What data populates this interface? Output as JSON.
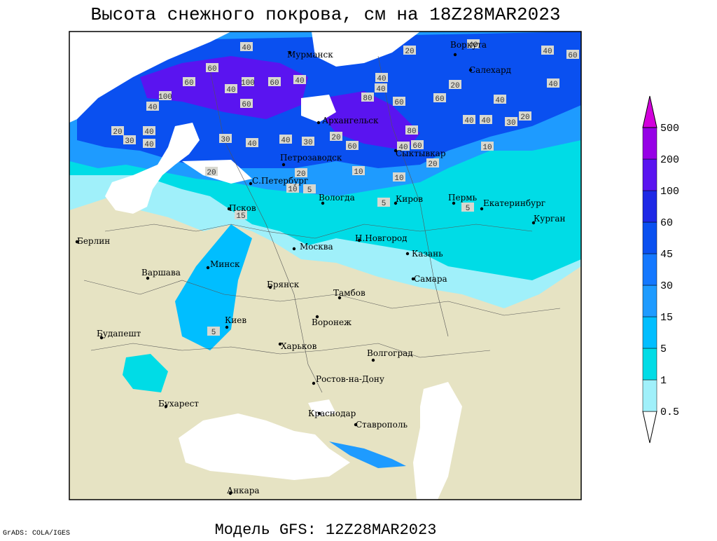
{
  "title": "Высота снежного покрова, см на 18Z28MAR2023",
  "footer": "Модель GFS: 12Z28MAR2023",
  "credit": "GrADS: COLA/IGES",
  "cities": [
    "Мурманск",
    "Воркута",
    "Салехард",
    "Архангельск",
    "Сыктывкар",
    "Петрозаводск",
    "С.Петербург",
    "Вологда",
    "Киров",
    "Пермь",
    "Екатеринбург",
    "Курган",
    "Псков",
    "Берлин",
    "Москва",
    "Н.Новгород",
    "Казань",
    "Минск",
    "Варшава",
    "Самара",
    "Брянск",
    "Тамбов",
    "Воронеж",
    "Киев",
    "Будапешт",
    "Харьков",
    "Волгоград",
    "Ростов-на-Дону",
    "Бухарест",
    "Краснодар",
    "Ставрополь",
    "Анкара"
  ],
  "contour_labels": [
    40,
    20,
    40,
    40,
    60,
    60,
    60,
    100,
    60,
    40,
    40,
    40,
    40,
    80,
    100,
    40,
    60,
    60,
    60,
    40,
    20,
    40,
    20,
    30,
    40,
    40,
    30,
    40,
    40,
    30,
    20,
    60,
    40,
    60,
    80,
    40,
    40,
    30,
    20,
    10,
    20,
    20,
    10,
    10,
    20,
    10,
    5,
    5,
    5,
    15,
    5
  ],
  "legend": {
    "levels": [
      0.5,
      1,
      5,
      15,
      30,
      45,
      60,
      100,
      200,
      500
    ],
    "colors": [
      "#ffffff",
      "#a0f0fa",
      "#00dce6",
      "#00beff",
      "#1e9bff",
      "#1478ff",
      "#0a50f0",
      "#1e28e6",
      "#5a14f0",
      "#9600e6",
      "#d200dc"
    ]
  }
}
